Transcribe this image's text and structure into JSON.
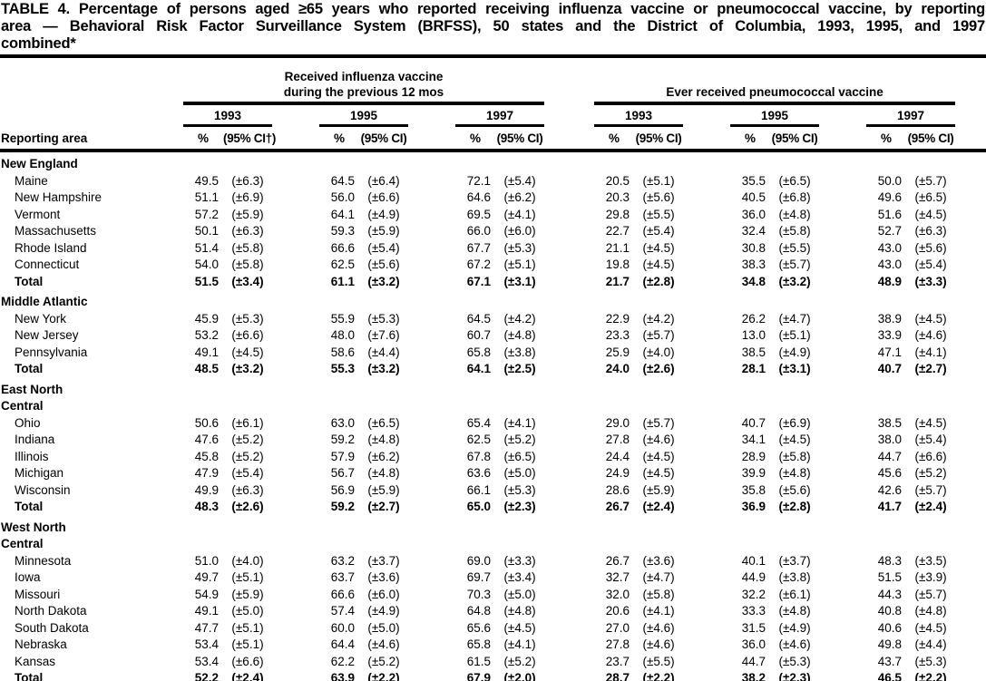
{
  "title": {
    "line1": "TABLE 4. Percentage of persons aged ≥65 years who reported receiving influenza vaccine or pneumococcal vaccine, by reporting",
    "line2": "area — Behavioral Risk Factor Surveillance System (BRFSS), 50 states and the District of Columbia, 1993, 1995, and 1997",
    "line3": "combined*"
  },
  "table": {
    "row_header": "Reporting area",
    "group_flu": {
      "line1": "Received influenza vaccine",
      "line2": "during the previous 12 mos",
      "years": [
        "1993",
        "1995",
        "1997"
      ]
    },
    "group_pneu": {
      "line1": "Ever received pneumococcal vaccine",
      "years": [
        "1993",
        "1995",
        "1997"
      ]
    },
    "pct_header": "%",
    "ci_headers": [
      "(95% CI†)",
      "(95% CI)",
      "(95% CI)",
      "(95% CI)",
      "(95% CI)",
      "(95% CI)"
    ],
    "sections": [
      {
        "name_lines": [
          "New England"
        ],
        "rows": [
          {
            "area": "Maine",
            "bold": false,
            "values": [
              "49.5",
              "(±6.3)",
              "64.5",
              "(±6.4)",
              "72.1",
              "(±5.4)",
              "20.5",
              "(±5.1)",
              "35.5",
              "(±6.5)",
              "50.0",
              "(±5.7)"
            ]
          },
          {
            "area": "New Hampshire",
            "bold": false,
            "values": [
              "51.1",
              "(±6.9)",
              "56.0",
              "(±6.6)",
              "64.6",
              "(±6.2)",
              "20.3",
              "(±5.6)",
              "40.5",
              "(±6.8)",
              "49.6",
              "(±6.5)"
            ]
          },
          {
            "area": "Vermont",
            "bold": false,
            "values": [
              "57.2",
              "(±5.9)",
              "64.1",
              "(±4.9)",
              "69.5",
              "(±4.1)",
              "29.8",
              "(±5.5)",
              "36.0",
              "(±4.8)",
              "51.6",
              "(±4.5)"
            ]
          },
          {
            "area": "Massachusetts",
            "bold": false,
            "values": [
              "50.1",
              "(±6.3)",
              "59.3",
              "(±5.9)",
              "66.0",
              "(±6.0)",
              "22.7",
              "(±5.4)",
              "32.4",
              "(±5.8)",
              "52.7",
              "(±6.3)"
            ]
          },
          {
            "area": "Rhode Island",
            "bold": false,
            "values": [
              "51.4",
              "(±5.8)",
              "66.6",
              "(±5.4)",
              "67.7",
              "(±5.3)",
              "21.1",
              "(±4.5)",
              "30.8",
              "(±5.5)",
              "43.0",
              "(±5.6)"
            ]
          },
          {
            "area": "Connecticut",
            "bold": false,
            "values": [
              "54.0",
              "(±5.8)",
              "62.5",
              "(±5.6)",
              "67.2",
              "(±5.1)",
              "19.8",
              "(±4.5)",
              "38.3",
              "(±5.7)",
              "43.0",
              "(±5.4)"
            ]
          },
          {
            "area": "Total",
            "bold": true,
            "values": [
              "51.5",
              "(±3.4)",
              "61.1",
              "(±3.2)",
              "67.1",
              "(±3.1)",
              "21.7",
              "(±2.8)",
              "34.8",
              "(±3.2)",
              "48.9",
              "(±3.3)"
            ]
          }
        ]
      },
      {
        "name_lines": [
          "Middle Atlantic"
        ],
        "rows": [
          {
            "area": "New York",
            "bold": false,
            "values": [
              "45.9",
              "(±5.3)",
              "55.9",
              "(±5.3)",
              "64.5",
              "(±4.2)",
              "22.9",
              "(±4.2)",
              "26.2",
              "(±4.7)",
              "38.9",
              "(±4.5)"
            ]
          },
          {
            "area": "New Jersey",
            "bold": false,
            "values": [
              "53.2",
              "(±6.6)",
              "48.0",
              "(±7.6)",
              "60.7",
              "(±4.8)",
              "23.3",
              "(±5.7)",
              "13.0",
              "(±5.1)",
              "33.9",
              "(±4.6)"
            ]
          },
          {
            "area": "Pennsylvania",
            "bold": false,
            "values": [
              "49.1",
              "(±4.5)",
              "58.6",
              "(±4.4)",
              "65.8",
              "(±3.8)",
              "25.9",
              "(±4.0)",
              "38.5",
              "(±4.9)",
              "47.1",
              "(±4.1)"
            ]
          },
          {
            "area": "Total",
            "bold": true,
            "values": [
              "48.5",
              "(±3.2)",
              "55.3",
              "(±3.2)",
              "64.1",
              "(±2.5)",
              "24.0",
              "(±2.6)",
              "28.1",
              "(±3.1)",
              "40.7",
              "(±2.7)"
            ]
          }
        ]
      },
      {
        "name_lines": [
          "East North",
          "Central"
        ],
        "rows": [
          {
            "area": "Ohio",
            "bold": false,
            "values": [
              "50.6",
              "(±6.1)",
              "63.0",
              "(±6.5)",
              "65.4",
              "(±4.1)",
              "29.0",
              "(±5.7)",
              "40.7",
              "(±6.9)",
              "38.5",
              "(±4.5)"
            ]
          },
          {
            "area": "Indiana",
            "bold": false,
            "values": [
              "47.6",
              "(±5.2)",
              "59.2",
              "(±4.8)",
              "62.5",
              "(±5.2)",
              "27.8",
              "(±4.6)",
              "34.1",
              "(±4.5)",
              "38.0",
              "(±5.4)"
            ]
          },
          {
            "area": "Illinois",
            "bold": false,
            "values": [
              "45.8",
              "(±5.2)",
              "57.9",
              "(±6.2)",
              "67.8",
              "(±6.5)",
              "24.4",
              "(±4.5)",
              "28.9",
              "(±5.8)",
              "44.7",
              "(±6.6)"
            ]
          },
          {
            "area": "Michigan",
            "bold": false,
            "values": [
              "47.9",
              "(±5.4)",
              "56.7",
              "(±4.8)",
              "63.6",
              "(±5.0)",
              "24.9",
              "(±4.5)",
              "39.9",
              "(±4.8)",
              "45.6",
              "(±5.2)"
            ]
          },
          {
            "area": "Wisconsin",
            "bold": false,
            "values": [
              "49.9",
              "(±6.3)",
              "56.9",
              "(±5.9)",
              "66.1",
              "(±5.3)",
              "28.6",
              "(±5.9)",
              "35.8",
              "(±5.6)",
              "42.6",
              "(±5.7)"
            ]
          },
          {
            "area": "Total",
            "bold": true,
            "values": [
              "48.3",
              "(±2.6)",
              "59.2",
              "(±2.7)",
              "65.0",
              "(±2.3)",
              "26.7",
              "(±2.4)",
              "36.9",
              "(±2.8)",
              "41.7",
              "(±2.4)"
            ]
          }
        ]
      },
      {
        "name_lines": [
          "West North",
          "Central"
        ],
        "rows": [
          {
            "area": "Minnesota",
            "bold": false,
            "values": [
              "51.0",
              "(±4.0)",
              "63.2",
              "(±3.7)",
              "69.0",
              "(±3.3)",
              "26.7",
              "(±3.6)",
              "40.1",
              "(±3.7)",
              "48.3",
              "(±3.5)"
            ]
          },
          {
            "area": "Iowa",
            "bold": false,
            "values": [
              "49.7",
              "(±5.1)",
              "63.7",
              "(±3.6)",
              "69.7",
              "(±3.4)",
              "32.7",
              "(±4.7)",
              "44.9",
              "(±3.8)",
              "51.5",
              "(±3.9)"
            ]
          },
          {
            "area": "Missouri",
            "bold": false,
            "values": [
              "54.9",
              "(±5.9)",
              "66.6",
              "(±6.0)",
              "70.3",
              "(±5.0)",
              "32.0",
              "(±5.8)",
              "32.2",
              "(±6.1)",
              "44.3",
              "(±5.7)"
            ]
          },
          {
            "area": "North Dakota",
            "bold": false,
            "values": [
              "49.1",
              "(±5.0)",
              "57.4",
              "(±4.9)",
              "64.8",
              "(±4.8)",
              "20.6",
              "(±4.1)",
              "33.3",
              "(±4.8)",
              "40.8",
              "(±4.8)"
            ]
          },
          {
            "area": "South Dakota",
            "bold": false,
            "values": [
              "47.7",
              "(±5.1)",
              "60.0",
              "(±5.0)",
              "65.6",
              "(±4.5)",
              "27.0",
              "(±4.6)",
              "31.5",
              "(±4.9)",
              "40.6",
              "(±4.5)"
            ]
          },
          {
            "area": "Nebraska",
            "bold": false,
            "values": [
              "53.4",
              "(±5.1)",
              "64.4",
              "(±4.6)",
              "65.8",
              "(±4.1)",
              "27.8",
              "(±4.6)",
              "36.0",
              "(±4.6)",
              "49.8",
              "(±4.4)"
            ]
          },
          {
            "area": "Kansas",
            "bold": false,
            "values": [
              "53.4",
              "(±6.6)",
              "62.2",
              "(±5.2)",
              "61.5",
              "(±5.2)",
              "23.7",
              "(±5.5)",
              "44.7",
              "(±5.3)",
              "43.7",
              "(±5.3)"
            ]
          },
          {
            "area": "Total",
            "bold": true,
            "values": [
              "52.2",
              "(±2.4)",
              "63.9",
              "(±2.2)",
              "67.9",
              "(±2.0)",
              "28.7",
              "(±2.2)",
              "38.2",
              "(±2.3)",
              "46.5",
              "(±2.2)"
            ]
          }
        ]
      }
    ]
  }
}
